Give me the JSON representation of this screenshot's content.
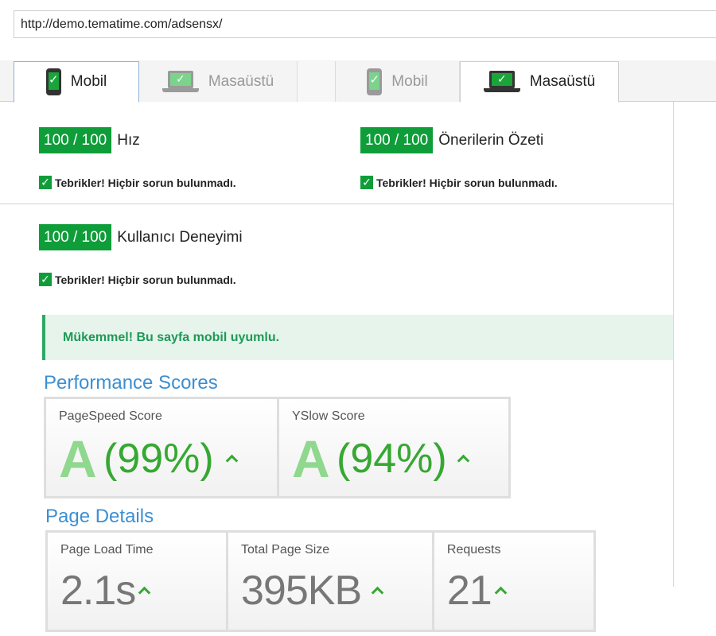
{
  "browser": {
    "url": "http://demo.tematime.com/adsensx/"
  },
  "tabs": [
    {
      "label": "Mobil",
      "icon": "phone-icon",
      "state": "active"
    },
    {
      "label": "Masaüstü",
      "icon": "laptop-icon",
      "state": "inactive"
    },
    {
      "label": "Mobil",
      "icon": "phone-icon",
      "state": "inactive"
    },
    {
      "label": "Masaüstü",
      "icon": "laptop-icon",
      "state": "active"
    }
  ],
  "check_glyph": "✓",
  "scores": [
    {
      "badge": "100 / 100",
      "label": "Hız",
      "message": "Tebrikler! Hiçbir sorun bulunmadı."
    },
    {
      "badge": "100 / 100",
      "label": "Önerilerin Özeti",
      "message": "Tebrikler! Hiçbir sorun bulunmadı."
    },
    {
      "badge": "100 / 100",
      "label": "Kullanıcı Deneyimi",
      "message": "Tebrikler! Hiçbir sorun bulunmadı."
    }
  ],
  "mobile_alert": "Mükemmel! Bu sayfa mobil uyumlu.",
  "performance": {
    "title": "Performance Scores",
    "cards": [
      {
        "title": "PageSpeed Score",
        "grade": "A",
        "percent": "(99%)"
      },
      {
        "title": "YSlow Score",
        "grade": "A",
        "percent": "(94%)"
      }
    ]
  },
  "details": {
    "title": "Page Details",
    "cards": [
      {
        "title": "Page Load Time",
        "value": "2.1s"
      },
      {
        "title": "Total Page Size",
        "value": "395KB"
      },
      {
        "title": "Requests",
        "value": "21"
      }
    ]
  },
  "colors": {
    "accent_green": "#0f9d3a",
    "section_blue": "#3d8fd1",
    "alert_bg": "#e6f4ec"
  }
}
